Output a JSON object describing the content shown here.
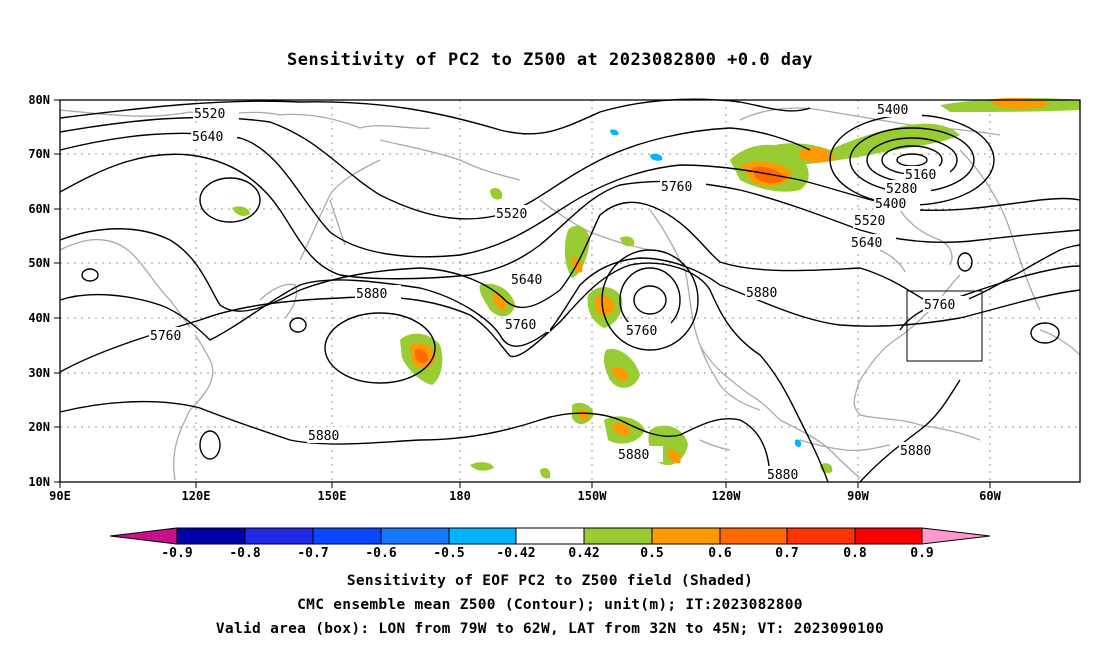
{
  "title": "Sensitivity of PC2 to Z500 at 2023082800 +0.0 day",
  "map": {
    "lat_ticks": [
      "80N",
      "70N",
      "60N",
      "50N",
      "40N",
      "30N",
      "20N",
      "10N"
    ],
    "lon_ticks": [
      "90E",
      "120E",
      "150E",
      "180",
      "150W",
      "120W",
      "90W",
      "60W"
    ],
    "contour_labels": [
      "5520",
      "5640",
      "5760",
      "5880",
      "5520",
      "5640",
      "5760",
      "5880",
      "5760",
      "5760",
      "5880",
      "5400",
      "5160",
      "5280",
      "5400",
      "5520",
      "5640",
      "5760",
      "5880",
      "5880",
      "5880"
    ],
    "box_label": "valid-area"
  },
  "colorbar": {
    "labels": [
      "-0.9",
      "-0.8",
      "-0.7",
      "-0.6",
      "-0.5",
      "-0.42",
      "0.42",
      "0.5",
      "0.6",
      "0.7",
      "0.8",
      "0.9"
    ],
    "colors": [
      "#c8108c",
      "#0000a8",
      "#1e28e6",
      "#0a46ff",
      "#1478ff",
      "#00b4ff",
      "#ffffff",
      "#99cc33",
      "#ff9900",
      "#ff6a00",
      "#ff3300",
      "#ff0000",
      "#ff99cc"
    ]
  },
  "captions": {
    "line1": "Sensitivity of EOF PC2 to Z500 field (Shaded)",
    "line2": "CMC ensemble mean Z500 (Contour); unit(m); IT:2023082800",
    "line3": "Valid area (box): LON from 79W to 62W, LAT from 32N to 45N; VT: 2023090100"
  }
}
